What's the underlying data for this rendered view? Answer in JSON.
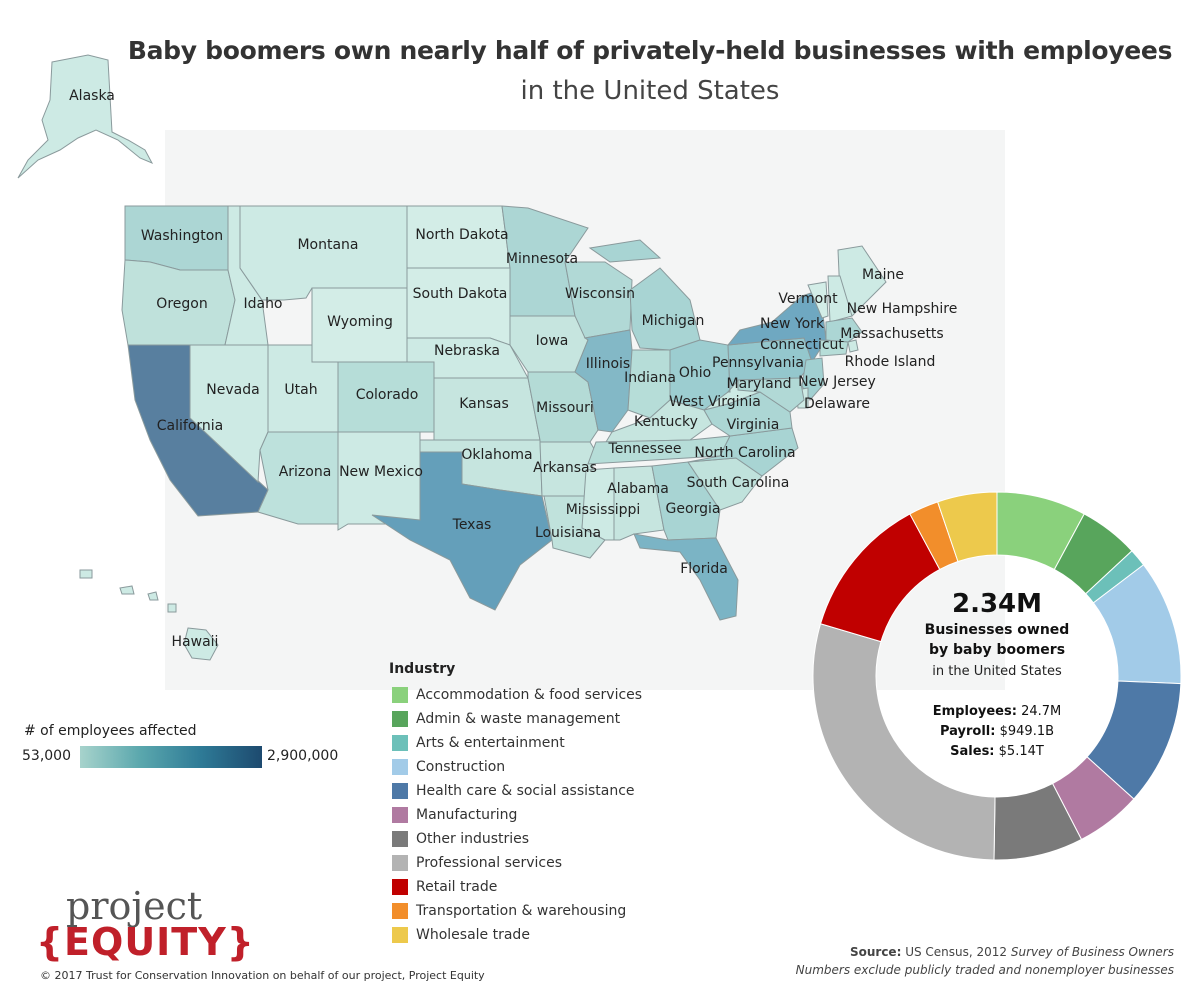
{
  "title": "Baby boomers own nearly half of privately-held businesses with employees",
  "subtitle": "in the United States",
  "map": {
    "states": [
      {
        "name": "Alaska",
        "color": "#cdeae4"
      },
      {
        "name": "Hawaii",
        "color": "#cdeae4"
      },
      {
        "name": "Washington",
        "color": "#acd6d4"
      },
      {
        "name": "Oregon",
        "color": "#bfe1db"
      },
      {
        "name": "California",
        "color": "#587f9f"
      },
      {
        "name": "Idaho",
        "color": "#cdeae4"
      },
      {
        "name": "Nevada",
        "color": "#cdeae4"
      },
      {
        "name": "Montana",
        "color": "#cdeae4"
      },
      {
        "name": "Wyoming",
        "color": "#d3ede7"
      },
      {
        "name": "Utah",
        "color": "#cdeae4"
      },
      {
        "name": "Colorado",
        "color": "#b6ddd8"
      },
      {
        "name": "Arizona",
        "color": "#bde1dc"
      },
      {
        "name": "New Mexico",
        "color": "#cdeae4"
      },
      {
        "name": "North Dakota",
        "color": "#d3ede7"
      },
      {
        "name": "South Dakota",
        "color": "#d3ede7"
      },
      {
        "name": "Nebraska",
        "color": "#cdeae4"
      },
      {
        "name": "Kansas",
        "color": "#c6e5df"
      },
      {
        "name": "Oklahoma",
        "color": "#c6e5df"
      },
      {
        "name": "Texas",
        "color": "#649fba"
      },
      {
        "name": "Minnesota",
        "color": "#acd6d4"
      },
      {
        "name": "Iowa",
        "color": "#c6e5df"
      },
      {
        "name": "Missouri",
        "color": "#b4dbd6"
      },
      {
        "name": "Arkansas",
        "color": "#c6e5df"
      },
      {
        "name": "Louisiana",
        "color": "#c0e2dc"
      },
      {
        "name": "Wisconsin",
        "color": "#b1d9d6"
      },
      {
        "name": "Illinois",
        "color": "#83b8c6"
      },
      {
        "name": "Michigan",
        "color": "#a8d4d3"
      },
      {
        "name": "Indiana",
        "color": "#b6ddd8"
      },
      {
        "name": "Ohio",
        "color": "#9ccdd0"
      },
      {
        "name": "Kentucky",
        "color": "#c6e5df"
      },
      {
        "name": "Tennessee",
        "color": "#b6ddd8"
      },
      {
        "name": "Mississippi",
        "color": "#cdeae4"
      },
      {
        "name": "Alabama",
        "color": "#c6e5df"
      },
      {
        "name": "Georgia",
        "color": "#a8d4d3"
      },
      {
        "name": "Florida",
        "color": "#7bb4c5"
      },
      {
        "name": "South Carolina",
        "color": "#c0e2dc"
      },
      {
        "name": "North Carolina",
        "color": "#a8d4d3"
      },
      {
        "name": "Virginia",
        "color": "#acd6d4"
      },
      {
        "name": "West Virginia",
        "color": "#cdeae4"
      },
      {
        "name": "Pennsylvania",
        "color": "#94c7cd"
      },
      {
        "name": "New York",
        "color": "#6fa8c1"
      },
      {
        "name": "Vermont",
        "color": "#d3ede7"
      },
      {
        "name": "Maine",
        "color": "#cdeae4"
      },
      {
        "name": "New Hampshire",
        "color": "#cdeae4"
      },
      {
        "name": "Massachusetts",
        "color": "#acd6d4"
      },
      {
        "name": "Rhode Island",
        "color": "#cdeae4"
      },
      {
        "name": "Connecticut",
        "color": "#b6ddd8"
      },
      {
        "name": "New Jersey",
        "color": "#a1d0d1"
      },
      {
        "name": "Delaware",
        "color": "#cdeae4"
      },
      {
        "name": "Maryland",
        "color": "#b1d9d6"
      }
    ]
  },
  "legend": {
    "title": "# of employees affected",
    "min": "53,000",
    "max": "2,900,000"
  },
  "industry": {
    "title": "Industry",
    "items": [
      {
        "label": "Accommodation & food services",
        "color": "#8ad17c",
        "share": 0.0786
      },
      {
        "label": "Admin & waste management",
        "color": "#58a55c",
        "share": 0.0524
      },
      {
        "label": "Arts & entertainment",
        "color": "#6cc0b9",
        "share": 0.0157
      },
      {
        "label": "Construction",
        "color": "#a2cbe8",
        "share": 0.1099
      },
      {
        "label": "Health care & social assistance",
        "color": "#4e79a7",
        "share": 0.1099
      },
      {
        "label": "Manufacturing",
        "color": "#b07aa1",
        "share": 0.0576
      },
      {
        "label": "Other industries",
        "color": "#7a7a7a",
        "share": 0.0785
      },
      {
        "label": "Professional services",
        "color": "#b3b3b3",
        "share": 0.2932
      },
      {
        "label": "Retail trade",
        "color": "#c00000",
        "share": 0.1257
      },
      {
        "label": "Transportation & warehousing",
        "color": "#f28e2b",
        "share": 0.0262
      },
      {
        "label": "Wholesale trade",
        "color": "#edc94c",
        "share": 0.0523
      }
    ]
  },
  "donut_center": {
    "big": "2.34M",
    "line1": "Businesses owned",
    "line2": "by baby boomers",
    "line3": "in the United States",
    "employees_label": "Employees:",
    "employees_value": "24.7M",
    "payroll_label": "Payroll:",
    "payroll_value": "$949.1B",
    "sales_label": "Sales:",
    "sales_value": "$5.14T"
  },
  "logo": {
    "line1": "project",
    "line2": "{EQUITY}"
  },
  "copyright": "© 2017 Trust for Conservation Innovation on behalf of our project, Project Equity",
  "source": {
    "label": "Source:",
    "text": "US Census, 2012",
    "italic": "Survey of Business Owners",
    "note": "Numbers exclude publicly traded and nonemployer businesses"
  }
}
